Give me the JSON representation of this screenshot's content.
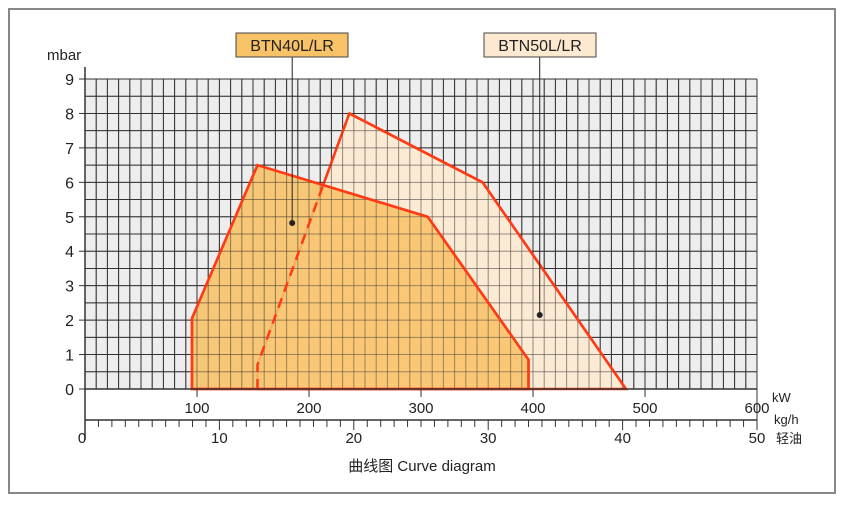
{
  "chart_data": {
    "type": "area",
    "title": "",
    "caption": "曲线图    Curve diagram",
    "ylabel": "mbar",
    "xlabel": "kW",
    "xlabel2": "kg/h",
    "xlabel2_sub": "轻油",
    "xlim": [
      0,
      600
    ],
    "ylim": [
      0,
      9
    ],
    "x2lim": [
      0,
      50
    ],
    "xticks": [
      100,
      200,
      300,
      400,
      500,
      600
    ],
    "x2ticks": [
      0,
      10,
      20,
      30,
      40,
      50
    ],
    "yticks": [
      0,
      1,
      2,
      3,
      4,
      5,
      6,
      7,
      8,
      9
    ],
    "grid": true,
    "series": [
      {
        "name": "BTN50L/LR",
        "color": "#fde9d0",
        "stroke": "#ff3a14",
        "points": [
          [
            154,
            0
          ],
          [
            154,
            0.7
          ],
          [
            236,
            8
          ],
          [
            355,
            6
          ],
          [
            483,
            0
          ]
        ],
        "label_point": [
          406,
          2.15
        ]
      },
      {
        "name": "BTN40L/LR",
        "color": "#f8c268",
        "stroke": "#ff3a14",
        "points": [
          [
            95.5,
            0
          ],
          [
            95.5,
            2.05
          ],
          [
            154,
            6.5
          ],
          [
            306,
            5.0
          ],
          [
            396,
            0.85
          ],
          [
            396,
            0
          ]
        ],
        "label_point": [
          185,
          4.82
        ]
      }
    ]
  }
}
